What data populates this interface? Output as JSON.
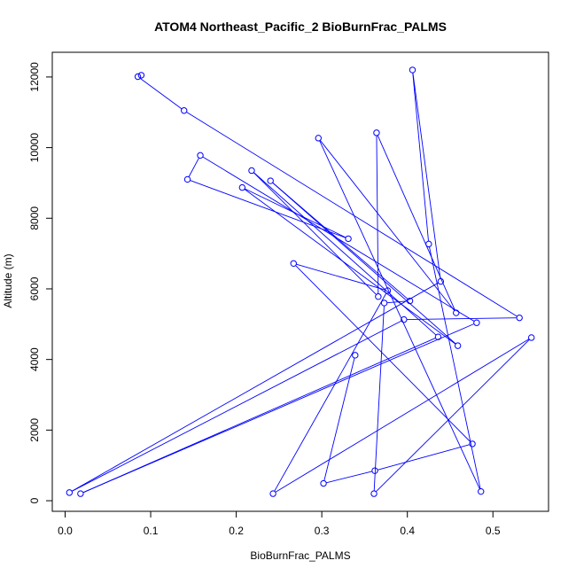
{
  "chart_data": {
    "type": "line",
    "title": "ATOM4 Northeast_Pacific_2 BioBurnFrac_PALMS",
    "xlabel": "BioBurnFrac_PALMS",
    "ylabel": "Altitude (m)",
    "xlim": [
      -0.015,
      0.565
    ],
    "ylim": [
      -300,
      12700
    ],
    "x_ticks": [
      0.0,
      0.1,
      0.2,
      0.3,
      0.4,
      0.5
    ],
    "x_tick_labels": [
      "0.0",
      "0.1",
      "0.2",
      "0.3",
      "0.4",
      "0.5"
    ],
    "y_ticks": [
      0,
      2000,
      4000,
      6000,
      8000,
      10000,
      12000
    ],
    "y_tick_labels": [
      "0",
      "2000",
      "4000",
      "6000",
      "8000",
      "10000",
      "12000"
    ],
    "grid": false,
    "series": [
      {
        "color": "#0000ff",
        "marker": "open-circle",
        "points": [
          {
            "x": 0.089,
            "y": 12050
          },
          {
            "x": 0.085,
            "y": 12010
          },
          {
            "x": 0.139,
            "y": 11050
          },
          {
            "x": 0.531,
            "y": 5180
          },
          {
            "x": 0.396,
            "y": 5130
          },
          {
            "x": 0.005,
            "y": 230
          },
          {
            "x": 0.439,
            "y": 6210
          },
          {
            "x": 0.406,
            "y": 12200
          },
          {
            "x": 0.425,
            "y": 7270
          },
          {
            "x": 0.486,
            "y": 260
          },
          {
            "x": 0.296,
            "y": 10270
          },
          {
            "x": 0.457,
            "y": 5320
          },
          {
            "x": 0.364,
            "y": 10420
          },
          {
            "x": 0.366,
            "y": 5780
          },
          {
            "x": 0.218,
            "y": 9350
          },
          {
            "x": 0.436,
            "y": 4640
          },
          {
            "x": 0.018,
            "y": 200
          },
          {
            "x": 0.481,
            "y": 5040
          },
          {
            "x": 0.158,
            "y": 9780
          },
          {
            "x": 0.143,
            "y": 9100
          },
          {
            "x": 0.331,
            "y": 7420
          },
          {
            "x": 0.207,
            "y": 8870
          },
          {
            "x": 0.459,
            "y": 4390
          },
          {
            "x": 0.24,
            "y": 9060
          },
          {
            "x": 0.403,
            "y": 5660
          },
          {
            "x": 0.373,
            "y": 5600
          },
          {
            "x": 0.361,
            "y": 200
          },
          {
            "x": 0.545,
            "y": 4620
          },
          {
            "x": 0.243,
            "y": 200
          },
          {
            "x": 0.377,
            "y": 5950
          },
          {
            "x": 0.267,
            "y": 6720
          },
          {
            "x": 0.476,
            "y": 1610
          },
          {
            "x": 0.362,
            "y": 850
          },
          {
            "x": 0.302,
            "y": 490
          },
          {
            "x": 0.339,
            "y": 4120
          }
        ]
      }
    ]
  }
}
